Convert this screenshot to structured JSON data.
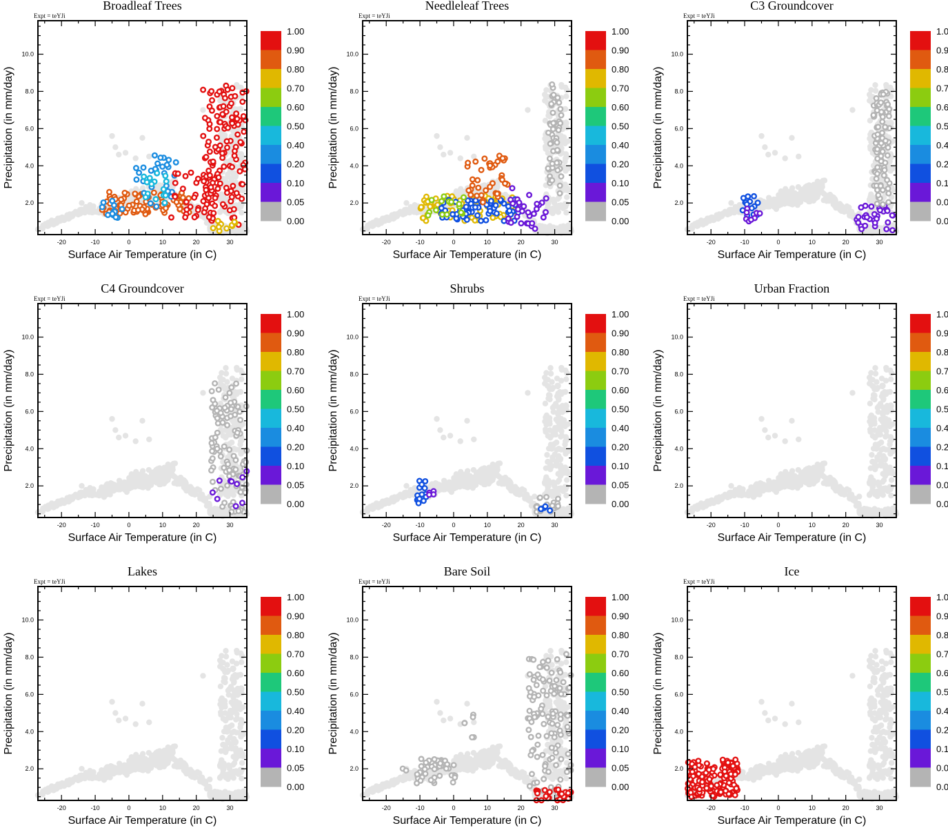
{
  "figure": {
    "expt_label": "Expt = teYJi",
    "xlabel": "Surface Air Temperature (in C)",
    "ylabel": "Precipitation (in mm/day)"
  },
  "colorbar": {
    "labels": [
      "1.00",
      "0.90",
      "0.80",
      "0.70",
      "0.60",
      "0.50",
      "0.40",
      "0.20",
      "0.10",
      "0.05",
      "0.00"
    ],
    "colors": [
      "#e31010",
      "#e05a10",
      "#e0b800",
      "#8ccc10",
      "#1ec87a",
      "#18b8dc",
      "#1a8ce0",
      "#1050e0",
      "#6a18d8",
      "#b4b4b4"
    ]
  },
  "chart_data": [
    {
      "type": "scatter",
      "title": "Broadleaf Trees",
      "xlabel": "Surface Air Temperature (in C)",
      "ylabel": "Precipitation (in mm/day)",
      "xlim": [
        -27,
        35
      ],
      "ylim": [
        0.3,
        11.8
      ],
      "xticks": [
        -20,
        -10,
        0,
        10,
        20,
        30
      ],
      "yticks": [
        2.0,
        4.0,
        6.0,
        8.0,
        10.0
      ],
      "colored_regions": [
        {
          "x": [
            -8,
            18
          ],
          "y": [
            1.4,
            2.6
          ],
          "n": 90,
          "color": "#e05a10",
          "fraction": 0.85
        },
        {
          "x": [
            -8,
            -2
          ],
          "y": [
            1.2,
            2.2
          ],
          "n": 12,
          "color": "#1a8ce0",
          "fraction": 0.2
        },
        {
          "x": [
            2,
            14
          ],
          "y": [
            1.6,
            4.6
          ],
          "n": 30,
          "color": "#1a8ce0",
          "fraction": 0.3
        },
        {
          "x": [
            4,
            14
          ],
          "y": [
            2.0,
            4.0
          ],
          "n": 18,
          "color": "#18b8dc",
          "fraction": 0.4
        },
        {
          "x": [
            12,
            26
          ],
          "y": [
            1.0,
            3.8
          ],
          "n": 40,
          "color": "#e31010",
          "fraction": 0.95
        },
        {
          "x": [
            22,
            35
          ],
          "y": [
            0.8,
            8.4
          ],
          "n": 130,
          "color": "#e31010",
          "fraction": 0.95
        },
        {
          "x": [
            24,
            32
          ],
          "y": [
            0.4,
            1.2
          ],
          "n": 10,
          "color": "#e0b800",
          "fraction": 0.7
        }
      ]
    },
    {
      "type": "scatter",
      "title": "Needleleaf Trees",
      "xlabel": "Surface Air Temperature (in C)",
      "ylabel": "Precipitation (in mm/day)",
      "xlim": [
        -27,
        35
      ],
      "ylim": [
        0.3,
        11.8
      ],
      "xticks": [
        -20,
        -10,
        0,
        10,
        20,
        30
      ],
      "yticks": [
        2.0,
        4.0,
        6.0,
        8.0,
        10.0
      ],
      "colored_regions": [
        {
          "x": [
            -10,
            18
          ],
          "y": [
            1.0,
            2.4
          ],
          "n": 80,
          "color": "#e0b800",
          "fraction": 0.7
        },
        {
          "x": [
            -4,
            20
          ],
          "y": [
            1.0,
            2.2
          ],
          "n": 60,
          "color": "#1050e0",
          "fraction": 0.15
        },
        {
          "x": [
            4,
            16
          ],
          "y": [
            2.0,
            4.6
          ],
          "n": 40,
          "color": "#e05a10",
          "fraction": 0.8
        },
        {
          "x": [
            -8,
            4
          ],
          "y": [
            1.2,
            2.4
          ],
          "n": 15,
          "color": "#8ccc10",
          "fraction": 0.6
        },
        {
          "x": [
            16,
            28
          ],
          "y": [
            0.6,
            2.8
          ],
          "n": 30,
          "color": "#6a18d8",
          "fraction": 0.05
        },
        {
          "x": [
            28,
            32
          ],
          "y": [
            2.5,
            8.4
          ],
          "n": 50,
          "color": "#b4b4b4",
          "fraction": 0.0
        }
      ]
    },
    {
      "type": "scatter",
      "title": "C3 Groundcover",
      "xlabel": "Surface Air Temperature (in C)",
      "ylabel": "Precipitation (in mm/day)",
      "xlim": [
        -27,
        35
      ],
      "ylim": [
        0.3,
        11.8
      ],
      "xticks": [
        -20,
        -10,
        0,
        10,
        20,
        30
      ],
      "yticks": [
        2.0,
        4.0,
        6.0,
        8.0,
        10.0
      ],
      "colored_regions": [
        {
          "x": [
            -11,
            -6
          ],
          "y": [
            1.2,
            2.4
          ],
          "n": 15,
          "color": "#1050e0",
          "fraction": 0.15
        },
        {
          "x": [
            -10,
            -5
          ],
          "y": [
            1.0,
            1.8
          ],
          "n": 8,
          "color": "#6a18d8",
          "fraction": 0.05
        },
        {
          "x": [
            23,
            34
          ],
          "y": [
            0.4,
            1.9
          ],
          "n": 30,
          "color": "#6a18d8",
          "fraction": 0.05
        },
        {
          "x": [
            28,
            33
          ],
          "y": [
            1.8,
            8.0
          ],
          "n": 90,
          "color": "#b4b4b4",
          "fraction": 0.0
        }
      ]
    },
    {
      "type": "scatter",
      "title": "C4 Groundcover",
      "xlabel": "Surface Air Temperature (in C)",
      "ylabel": "Precipitation (in mm/day)",
      "xlim": [
        -27,
        35
      ],
      "ylim": [
        0.3,
        11.8
      ],
      "xticks": [
        -20,
        -10,
        0,
        10,
        20,
        30
      ],
      "yticks": [
        2.0,
        4.0,
        6.0,
        8.0,
        10.0
      ],
      "colored_regions": [
        {
          "x": [
            24,
            35
          ],
          "y": [
            0.5,
            7.6
          ],
          "n": 110,
          "color": "#b4b4b4",
          "fraction": 0.0
        },
        {
          "x": [
            24,
            35
          ],
          "y": [
            0.5,
            2.8
          ],
          "n": 10,
          "color": "#6a18d8",
          "fraction": 0.05
        }
      ]
    },
    {
      "type": "scatter",
      "title": "Shrubs",
      "xlabel": "Surface Air Temperature (in C)",
      "ylabel": "Precipitation (in mm/day)",
      "xlim": [
        -27,
        35
      ],
      "ylim": [
        0.3,
        11.8
      ],
      "xticks": [
        -20,
        -10,
        0,
        10,
        20,
        30
      ],
      "yticks": [
        2.0,
        4.0,
        6.0,
        8.0,
        10.0
      ],
      "colored_regions": [
        {
          "x": [
            -11,
            -6
          ],
          "y": [
            1.0,
            2.4
          ],
          "n": 14,
          "color": "#1050e0",
          "fraction": 0.15
        },
        {
          "x": [
            -8,
            -5
          ],
          "y": [
            1.2,
            1.8
          ],
          "n": 4,
          "color": "#6a18d8",
          "fraction": 0.05
        },
        {
          "x": [
            24,
            31
          ],
          "y": [
            0.5,
            1.4
          ],
          "n": 20,
          "color": "#b4b4b4",
          "fraction": 0.0
        },
        {
          "x": [
            25,
            30
          ],
          "y": [
            0.6,
            0.9
          ],
          "n": 5,
          "color": "#1050e0",
          "fraction": 0.1
        }
      ]
    },
    {
      "type": "scatter",
      "title": "Urban Fraction",
      "xlabel": "Surface Air Temperature (in C)",
      "ylabel": "Precipitation (in mm/day)",
      "xlim": [
        -27,
        35
      ],
      "ylim": [
        0.3,
        11.8
      ],
      "xticks": [
        -20,
        -10,
        0,
        10,
        20,
        30
      ],
      "yticks": [
        2.0,
        4.0,
        6.0,
        8.0,
        10.0
      ],
      "colored_regions": []
    },
    {
      "type": "scatter",
      "title": "Lakes",
      "xlabel": "Surface Air Temperature (in C)",
      "ylabel": "Precipitation (in mm/day)",
      "xlim": [
        -27,
        35
      ],
      "ylim": [
        0.3,
        11.8
      ],
      "xticks": [
        -20,
        -10,
        0,
        10,
        20,
        30
      ],
      "yticks": [
        2.0,
        4.0,
        6.0,
        8.0,
        10.0
      ],
      "colored_regions": []
    },
    {
      "type": "scatter",
      "title": "Bare Soil",
      "xlabel": "Surface Air Temperature (in C)",
      "ylabel": "Precipitation (in mm/day)",
      "xlim": [
        -27,
        35
      ],
      "ylim": [
        0.3,
        11.8
      ],
      "xticks": [
        -20,
        -10,
        0,
        10,
        20,
        30
      ],
      "yticks": [
        2.0,
        4.0,
        6.0,
        8.0,
        10.0
      ],
      "colored_regions": [
        {
          "x": [
            -11,
            1
          ],
          "y": [
            1.2,
            2.6
          ],
          "n": 45,
          "color": "#b4b4b4",
          "fraction": 0.0
        },
        {
          "x": [
            -16,
            -14
          ],
          "y": [
            1.9,
            2.2
          ],
          "n": 2,
          "color": "#b4b4b4",
          "fraction": 0.0
        },
        {
          "x": [
            3,
            7
          ],
          "y": [
            3.4,
            5.6
          ],
          "n": 6,
          "color": "#b4b4b4",
          "fraction": 0.0
        },
        {
          "x": [
            22,
            35
          ],
          "y": [
            0.6,
            8.2
          ],
          "n": 120,
          "color": "#b4b4b4",
          "fraction": 0.0
        },
        {
          "x": [
            24,
            35
          ],
          "y": [
            0.3,
            0.9
          ],
          "n": 28,
          "color": "#e31010",
          "fraction": 0.95
        }
      ]
    },
    {
      "type": "scatter",
      "title": "Ice",
      "xlabel": "Surface Air Temperature (in C)",
      "ylabel": "Precipitation (in mm/day)",
      "xlim": [
        -27,
        35
      ],
      "ylim": [
        0.3,
        11.8
      ],
      "xticks": [
        -20,
        -10,
        0,
        10,
        20,
        30
      ],
      "yticks": [
        2.0,
        4.0,
        6.0,
        8.0,
        10.0
      ],
      "colored_regions": [
        {
          "x": [
            -27,
            -12
          ],
          "y": [
            0.5,
            2.5
          ],
          "n": 160,
          "color": "#e31010",
          "fraction": 0.95
        }
      ]
    }
  ]
}
